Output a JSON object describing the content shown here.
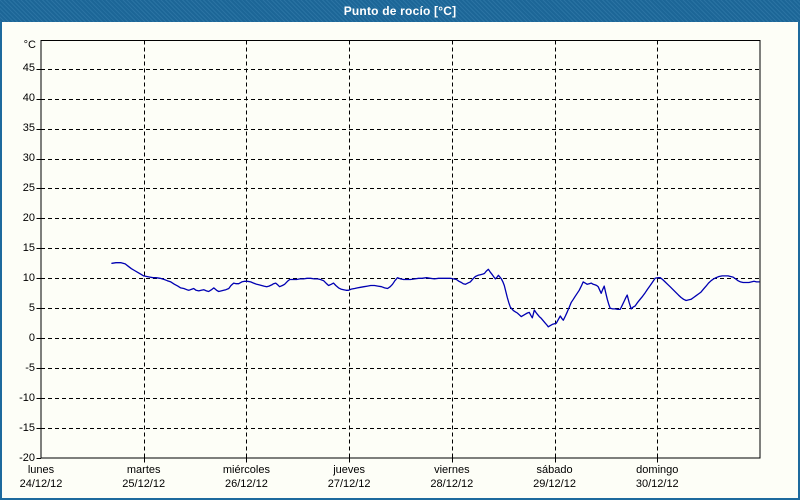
{
  "window": {
    "title": "Punto de rocío [°C]"
  },
  "chart_data": {
    "type": "line",
    "title": "Punto de rocío [°C]",
    "ylabel": "°C",
    "xlabel": "",
    "ylim": [
      -20,
      49.7
    ],
    "xlim_days": [
      0,
      7
    ],
    "yticks": [
      45,
      40,
      35,
      30,
      25,
      20,
      15,
      10,
      5,
      0,
      -5,
      -10,
      -15,
      -20
    ],
    "grid": "dashed-black",
    "legend_position": "none",
    "days": [
      {
        "label": "lunes",
        "date": "24/12/12"
      },
      {
        "label": "martes",
        "date": "25/12/12"
      },
      {
        "label": "miércoles",
        "date": "26/12/12"
      },
      {
        "label": "jueves",
        "date": "27/12/12"
      },
      {
        "label": "viernes",
        "date": "28/12/12"
      },
      {
        "label": "sábado",
        "date": "29/12/12"
      },
      {
        "label": "domingo",
        "date": "30/12/12"
      }
    ],
    "colors": {
      "titlebar": "#1d6a9d",
      "frame_border": "#1d6a9d",
      "background": "#fdfef7",
      "line": "#0000b2",
      "grid": "#000000",
      "axis": "#000000"
    },
    "series": [
      {
        "name": "Punto de rocío",
        "unit": "°C",
        "points_day_value": [
          [
            0.69,
            12.5
          ],
          [
            0.73,
            12.6
          ],
          [
            0.78,
            12.6
          ],
          [
            0.82,
            12.4
          ],
          [
            0.85,
            12.0
          ],
          [
            0.88,
            11.6
          ],
          [
            0.91,
            11.3
          ],
          [
            0.94,
            11.0
          ],
          [
            0.97,
            10.7
          ],
          [
            1.0,
            10.4
          ],
          [
            1.03,
            10.3
          ],
          [
            1.06,
            10.2
          ],
          [
            1.09,
            10.1
          ],
          [
            1.12,
            10.1
          ],
          [
            1.16,
            10.0
          ],
          [
            1.2,
            9.8
          ],
          [
            1.23,
            9.6
          ],
          [
            1.264,
            9.4
          ],
          [
            1.3,
            9.0
          ],
          [
            1.332,
            8.7
          ],
          [
            1.36,
            8.4
          ],
          [
            1.39,
            8.3
          ],
          [
            1.42,
            8.1
          ],
          [
            1.439,
            8.0
          ],
          [
            1.47,
            8.2
          ],
          [
            1.487,
            8.3
          ],
          [
            1.51,
            8.0
          ],
          [
            1.536,
            7.9
          ],
          [
            1.56,
            8.0
          ],
          [
            1.585,
            8.1
          ],
          [
            1.61,
            7.9
          ],
          [
            1.633,
            7.8
          ],
          [
            1.66,
            8.1
          ],
          [
            1.682,
            8.4
          ],
          [
            1.71,
            8.0
          ],
          [
            1.73,
            7.8
          ],
          [
            1.755,
            7.9
          ],
          [
            1.779,
            8.0
          ],
          [
            1.8,
            8.1
          ],
          [
            1.828,
            8.3
          ],
          [
            1.85,
            8.8
          ],
          [
            1.876,
            9.2
          ],
          [
            1.9,
            9.1
          ],
          [
            1.925,
            9.1
          ],
          [
            1.955,
            9.4
          ],
          [
            1.983,
            9.5
          ],
          [
            2.01,
            9.5
          ],
          [
            2.042,
            9.4
          ],
          [
            2.07,
            9.2
          ],
          [
            2.1,
            9.0
          ],
          [
            2.125,
            8.9
          ],
          [
            2.148,
            8.8
          ],
          [
            2.17,
            8.7
          ],
          [
            2.197,
            8.6
          ],
          [
            2.22,
            8.7
          ],
          [
            2.246,
            8.9
          ],
          [
            2.265,
            9.1
          ],
          [
            2.285,
            9.2
          ],
          [
            2.305,
            8.9
          ],
          [
            2.323,
            8.6
          ],
          [
            2.35,
            8.8
          ],
          [
            2.372,
            9.0
          ],
          [
            2.4,
            9.5
          ],
          [
            2.421,
            9.8
          ],
          [
            2.455,
            9.8
          ],
          [
            2.489,
            9.8
          ],
          [
            2.52,
            9.9
          ],
          [
            2.557,
            9.9
          ],
          [
            2.59,
            10.0
          ],
          [
            2.625,
            10.0
          ],
          [
            2.66,
            9.9
          ],
          [
            2.693,
            9.9
          ],
          [
            2.72,
            9.8
          ],
          [
            2.751,
            9.6
          ],
          [
            2.775,
            9.2
          ],
          [
            2.8,
            8.8
          ],
          [
            2.825,
            9.0
          ],
          [
            2.848,
            9.2
          ],
          [
            2.87,
            8.8
          ],
          [
            2.897,
            8.4
          ],
          [
            2.92,
            8.2
          ],
          [
            2.946,
            8.1
          ],
          [
            2.97,
            8.0
          ],
          [
            2.994,
            8.0
          ],
          [
            3.02,
            8.2
          ],
          [
            3.053,
            8.3
          ],
          [
            3.08,
            8.4
          ],
          [
            3.111,
            8.5
          ],
          [
            3.145,
            8.6
          ],
          [
            3.179,
            8.7
          ],
          [
            3.21,
            8.8
          ],
          [
            3.247,
            8.8
          ],
          [
            3.28,
            8.7
          ],
          [
            3.315,
            8.6
          ],
          [
            3.345,
            8.4
          ],
          [
            3.374,
            8.3
          ],
          [
            3.4,
            8.6
          ],
          [
            3.422,
            9.0
          ],
          [
            3.445,
            9.6
          ],
          [
            3.471,
            10.1
          ],
          [
            3.5,
            9.9
          ],
          [
            3.529,
            9.8
          ],
          [
            3.56,
            9.8
          ],
          [
            3.597,
            9.8
          ],
          [
            3.64,
            9.9
          ],
          [
            3.675,
            10.0
          ],
          [
            3.71,
            10.0
          ],
          [
            3.753,
            10.1
          ],
          [
            3.79,
            10.0
          ],
          [
            3.83,
            9.9
          ],
          [
            3.87,
            10.0
          ],
          [
            3.908,
            10.0
          ],
          [
            3.95,
            10.0
          ],
          [
            3.986,
            10.0
          ],
          [
            4.015,
            9.9
          ],
          [
            4.044,
            9.8
          ],
          [
            4.07,
            9.5
          ],
          [
            4.093,
            9.3
          ],
          [
            4.11,
            9.1
          ],
          [
            4.132,
            9.0
          ],
          [
            4.155,
            9.2
          ],
          [
            4.18,
            9.4
          ],
          [
            4.205,
            9.9
          ],
          [
            4.229,
            10.3
          ],
          [
            4.255,
            10.5
          ],
          [
            4.278,
            10.6
          ],
          [
            4.3,
            10.7
          ],
          [
            4.317,
            10.8
          ],
          [
            4.335,
            11.2
          ],
          [
            4.356,
            11.5
          ],
          [
            4.375,
            11.0
          ],
          [
            4.394,
            10.6
          ],
          [
            4.41,
            10.2
          ],
          [
            4.424,
            9.9
          ],
          [
            4.44,
            10.2
          ],
          [
            4.453,
            10.5
          ],
          [
            4.468,
            10.2
          ],
          [
            4.482,
            9.9
          ],
          [
            4.497,
            9.4
          ],
          [
            4.511,
            8.8
          ],
          [
            4.525,
            7.8
          ],
          [
            4.54,
            6.8
          ],
          [
            4.555,
            5.9
          ],
          [
            4.569,
            5.2
          ],
          [
            4.585,
            4.9
          ],
          [
            4.599,
            4.6
          ],
          [
            4.618,
            4.4
          ],
          [
            4.637,
            4.2
          ],
          [
            4.657,
            3.9
          ],
          [
            4.676,
            3.6
          ],
          [
            4.695,
            3.8
          ],
          [
            4.715,
            4.0
          ],
          [
            4.735,
            4.2
          ],
          [
            4.754,
            4.3
          ],
          [
            4.77,
            3.8
          ],
          [
            4.783,
            3.4
          ],
          [
            4.793,
            4.0
          ],
          [
            4.803,
            4.7
          ],
          [
            4.818,
            4.3
          ],
          [
            4.832,
            4.0
          ],
          [
            4.851,
            3.6
          ],
          [
            4.871,
            3.3
          ],
          [
            4.89,
            2.9
          ],
          [
            4.91,
            2.5
          ],
          [
            4.925,
            2.2
          ],
          [
            4.939,
            1.9
          ],
          [
            4.958,
            2.1
          ],
          [
            4.978,
            2.3
          ],
          [
            4.998,
            2.4
          ],
          [
            5.017,
            2.5
          ],
          [
            5.036,
            3.1
          ],
          [
            5.056,
            3.7
          ],
          [
            5.07,
            3.3
          ],
          [
            5.085,
            3.0
          ],
          [
            5.105,
            3.7
          ],
          [
            5.124,
            4.4
          ],
          [
            5.143,
            5.2
          ],
          [
            5.163,
            6.0
          ],
          [
            5.182,
            6.5
          ],
          [
            5.201,
            7.0
          ],
          [
            5.22,
            7.5
          ],
          [
            5.24,
            8.0
          ],
          [
            5.26,
            8.7
          ],
          [
            5.279,
            9.4
          ],
          [
            5.298,
            9.2
          ],
          [
            5.318,
            9.0
          ],
          [
            5.337,
            9.1
          ],
          [
            5.357,
            9.2
          ],
          [
            5.376,
            9.0
          ],
          [
            5.396,
            8.9
          ],
          [
            5.41,
            8.8
          ],
          [
            5.425,
            8.6
          ],
          [
            5.44,
            8.0
          ],
          [
            5.454,
            7.5
          ],
          [
            5.468,
            8.1
          ],
          [
            5.483,
            8.7
          ],
          [
            5.498,
            7.6
          ],
          [
            5.513,
            6.5
          ],
          [
            5.527,
            5.7
          ],
          [
            5.542,
            5.0
          ],
          [
            5.566,
            4.9
          ],
          [
            5.59,
            4.9
          ],
          [
            5.615,
            4.8
          ],
          [
            5.639,
            4.8
          ],
          [
            5.658,
            5.5
          ],
          [
            5.678,
            6.2
          ],
          [
            5.692,
            6.7
          ],
          [
            5.707,
            7.2
          ],
          [
            5.726,
            6.0
          ],
          [
            5.746,
            4.9
          ],
          [
            5.765,
            5.2
          ],
          [
            5.785,
            5.4
          ],
          [
            5.809,
            6.0
          ],
          [
            5.833,
            6.5
          ],
          [
            5.857,
            7.0
          ],
          [
            5.882,
            7.6
          ],
          [
            5.906,
            8.2
          ],
          [
            5.931,
            8.8
          ],
          [
            5.955,
            9.4
          ],
          [
            5.979,
            10.0
          ],
          [
            6.003,
            10.1
          ],
          [
            6.028,
            10.1
          ],
          [
            6.052,
            9.8
          ],
          [
            6.076,
            9.4
          ],
          [
            6.1,
            9.0
          ],
          [
            6.125,
            8.6
          ],
          [
            6.154,
            8.1
          ],
          [
            6.183,
            7.6
          ],
          [
            6.207,
            7.2
          ],
          [
            6.232,
            6.8
          ],
          [
            6.256,
            6.5
          ],
          [
            6.281,
            6.3
          ],
          [
            6.305,
            6.4
          ],
          [
            6.329,
            6.5
          ],
          [
            6.354,
            6.8
          ],
          [
            6.378,
            7.1
          ],
          [
            6.402,
            7.4
          ],
          [
            6.426,
            7.7
          ],
          [
            6.45,
            8.2
          ],
          [
            6.475,
            8.7
          ],
          [
            6.499,
            9.2
          ],
          [
            6.524,
            9.6
          ],
          [
            6.548,
            9.9
          ],
          [
            6.572,
            10.1
          ],
          [
            6.601,
            10.3
          ],
          [
            6.631,
            10.4
          ],
          [
            6.66,
            10.4
          ],
          [
            6.689,
            10.4
          ],
          [
            6.713,
            10.3
          ],
          [
            6.738,
            10.2
          ],
          [
            6.762,
            9.9
          ],
          [
            6.786,
            9.6
          ],
          [
            6.81,
            9.4
          ],
          [
            6.835,
            9.3
          ],
          [
            6.864,
            9.3
          ],
          [
            6.893,
            9.3
          ],
          [
            6.917,
            9.4
          ],
          [
            6.942,
            9.5
          ],
          [
            6.966,
            9.4
          ],
          [
            6.99,
            9.4
          ]
        ]
      }
    ]
  }
}
